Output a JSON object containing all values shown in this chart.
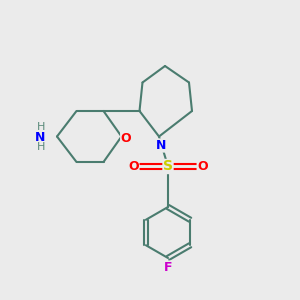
{
  "background_color": "#EBEBEB",
  "bond_color": "#4A7C6F",
  "bond_width": 1.5,
  "atom_colors": {
    "N": "#0000FF",
    "O_ring": "#FF0000",
    "O_sulfonyl": "#FF0000",
    "S": "#CCCC00",
    "F": "#CC00CC",
    "NH2_H": "#5A8A7A",
    "NH2_N": "#0000FF"
  },
  "figsize": [
    3.0,
    3.0
  ],
  "dpi": 100,
  "xlim": [
    0,
    10
  ],
  "ylim": [
    0,
    10
  ]
}
